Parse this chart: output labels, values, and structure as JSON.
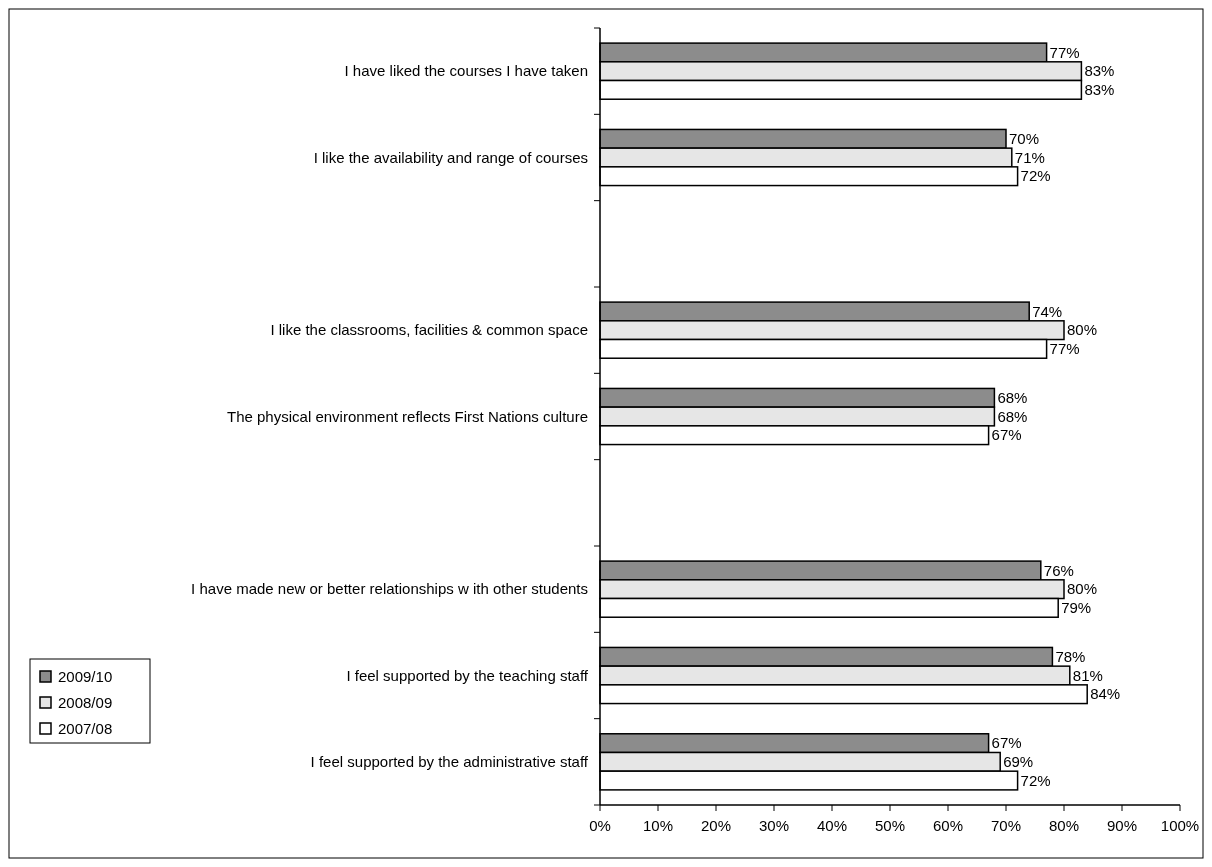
{
  "chart_data": {
    "type": "bar",
    "orientation": "horizontal",
    "categories": [
      "I have liked the courses I have taken",
      "I like the availability and range of courses",
      null,
      "I like the classrooms, facilities & common space",
      "The physical environment reflects First Nations culture",
      null,
      "I have made new  or better relationships w ith other students",
      "I feel supported by the teaching staff",
      "I feel supported by the administrative staff"
    ],
    "series": [
      {
        "name": "2009/10",
        "color": "#8c8c8c",
        "values": [
          77,
          70,
          null,
          74,
          68,
          null,
          76,
          78,
          67
        ],
        "value_labels": [
          "77%",
          "70%",
          null,
          "74%",
          "68%",
          null,
          "76%",
          "78%",
          "67%"
        ]
      },
      {
        "name": "2008/09",
        "color": "#e6e6e6",
        "values": [
          83,
          71,
          null,
          80,
          68,
          null,
          80,
          81,
          69
        ],
        "value_labels": [
          "83%",
          "71%",
          null,
          "80%",
          "68%",
          null,
          "80%",
          "81%",
          "69%"
        ]
      },
      {
        "name": "2007/08",
        "color": "#ffffff",
        "values": [
          83,
          72,
          null,
          77,
          67,
          null,
          79,
          84,
          72
        ],
        "value_labels": [
          "83%",
          "72%",
          null,
          "77%",
          "67%",
          null,
          "79%",
          "84%",
          "72%"
        ]
      }
    ],
    "xlim": [
      0,
      100
    ],
    "xticks": [
      {
        "value": 0,
        "label": "0%"
      },
      {
        "value": 10,
        "label": "10%"
      },
      {
        "value": 20,
        "label": "20%"
      },
      {
        "value": 30,
        "label": "30%"
      },
      {
        "value": 40,
        "label": "40%"
      },
      {
        "value": 50,
        "label": "50%"
      },
      {
        "value": 60,
        "label": "60%"
      },
      {
        "value": 70,
        "label": "70%"
      },
      {
        "value": 80,
        "label": "80%"
      },
      {
        "value": 90,
        "label": "90%"
      },
      {
        "value": 100,
        "label": "100%"
      }
    ],
    "legend": "bottom left",
    "grid": false
  }
}
